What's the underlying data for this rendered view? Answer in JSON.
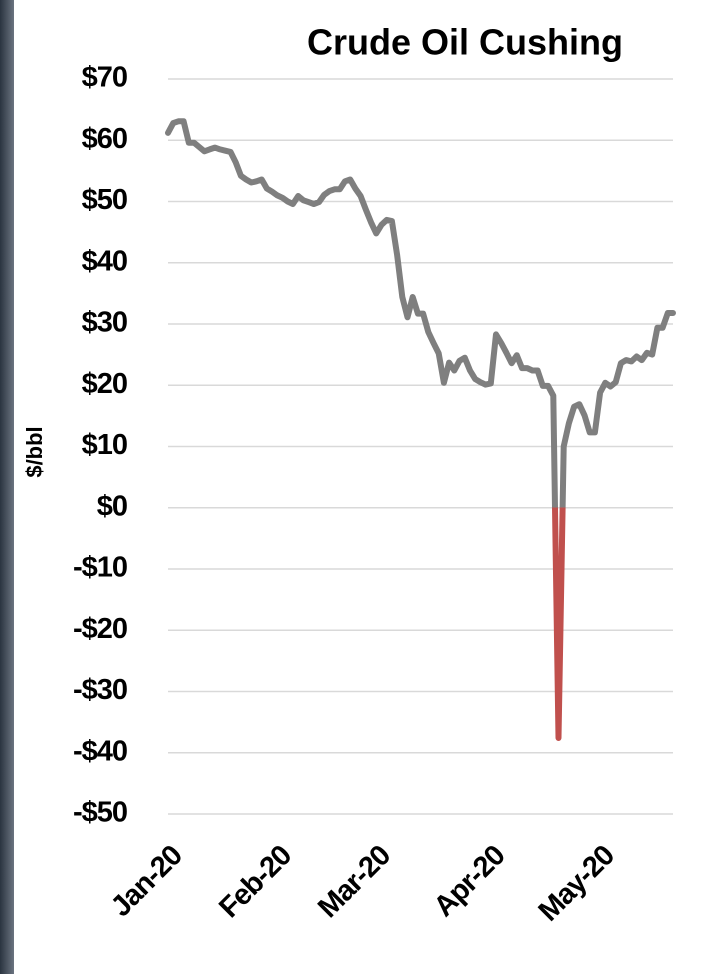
{
  "chart_data": {
    "type": "line",
    "title": "Crude  Oil Cushing",
    "y_label": "$/bbl",
    "categories": [
      "Jan-20",
      null,
      null,
      null,
      null,
      null,
      null,
      null,
      null,
      null,
      null,
      null,
      null,
      null,
      null,
      null,
      null,
      null,
      null,
      null,
      null,
      "Feb-20",
      null,
      null,
      null,
      null,
      null,
      null,
      null,
      null,
      null,
      null,
      null,
      null,
      null,
      null,
      null,
      null,
      null,
      null,
      "Mar-20",
      null,
      null,
      null,
      null,
      null,
      null,
      null,
      null,
      null,
      null,
      null,
      null,
      null,
      null,
      null,
      null,
      null,
      null,
      null,
      null,
      null,
      "Apr-20",
      null,
      null,
      null,
      null,
      null,
      null,
      null,
      null,
      null,
      null,
      null,
      null,
      null,
      null,
      null,
      null,
      null,
      null,
      null,
      null,
      "May-20",
      null,
      null,
      null,
      null,
      null,
      null,
      null,
      null,
      null,
      null,
      null,
      null,
      null,
      null
    ],
    "values": [
      61.2,
      62.8,
      63.1,
      63.1,
      59.6,
      59.6,
      58.9,
      58.2,
      58.5,
      58.8,
      58.5,
      58.3,
      58.1,
      56.4,
      54.2,
      53.6,
      53.1,
      53.3,
      53.6,
      52.1,
      51.6,
      51.0,
      50.6,
      50.0,
      49.6,
      50.9,
      50.2,
      49.9,
      49.6,
      49.9,
      51.1,
      51.7,
      52.0,
      52.0,
      53.3,
      53.6,
      52.1,
      50.9,
      48.7,
      46.6,
      44.8,
      46.2,
      47.0,
      46.8,
      41.3,
      34.4,
      31.1,
      34.4,
      31.7,
      31.7,
      28.7,
      26.9,
      25.2,
      20.4,
      23.7,
      22.4,
      24.0,
      24.5,
      22.4,
      21.0,
      20.5,
      20.1,
      20.3,
      28.3,
      26.9,
      25.3,
      23.6,
      24.9,
      22.8,
      22.8,
      22.4,
      22.4,
      19.9,
      19.9,
      18.3,
      -37.6,
      10.0,
      13.8,
      16.5,
      16.9,
      15.1,
      12.3,
      12.3,
      18.8,
      20.4,
      19.8,
      20.5,
      23.6,
      24.1,
      23.9,
      24.7,
      24.1,
      25.3,
      25.0,
      29.4,
      29.4,
      31.8,
      31.8
    ],
    "color": "#7f7f7f",
    "negative_color": "#c0504d",
    "ylim": [
      -50,
      70
    ],
    "yticks": [
      {
        "value": 70,
        "label": "$70"
      },
      {
        "value": 60,
        "label": "$60"
      },
      {
        "value": 50,
        "label": "$50"
      },
      {
        "value": 40,
        "label": "$40"
      },
      {
        "value": 30,
        "label": "$30"
      },
      {
        "value": 20,
        "label": "$20"
      },
      {
        "value": 10,
        "label": "$10"
      },
      {
        "value": 0,
        "label": "$0"
      },
      {
        "value": -10,
        "label": "-$10"
      },
      {
        "value": -20,
        "label": "-$20"
      },
      {
        "value": -30,
        "label": "-$30"
      },
      {
        "value": -40,
        "label": "-$40"
      },
      {
        "value": -50,
        "label": "-$50"
      }
    ],
    "grid": true
  }
}
